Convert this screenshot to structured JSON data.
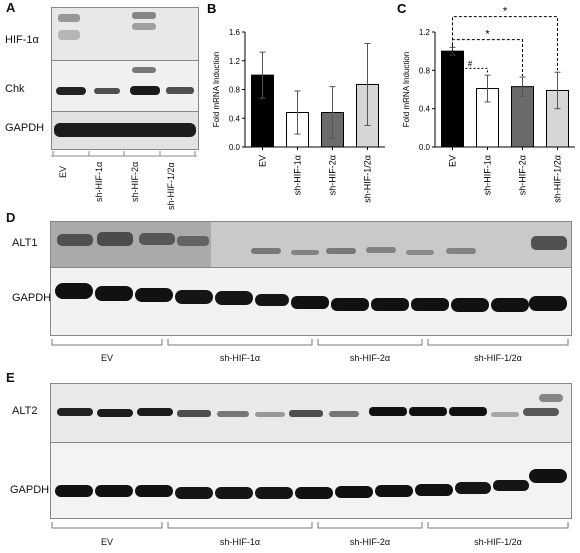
{
  "panels": {
    "a": {
      "letter": "A",
      "rows": [
        "HIF-1α",
        "Chk",
        "GAPDH"
      ],
      "lanes": [
        "EV",
        "sh-HIF-1α",
        "sh-HIF-2α",
        "sh-HIF-1/2α"
      ]
    },
    "d": {
      "letter": "D",
      "rows": [
        "ALT1",
        "GAPDH"
      ],
      "groups": [
        "EV",
        "sh-HIF-1α",
        "sh-HIF-2α",
        "sh-HIF-1/2α"
      ]
    },
    "e": {
      "letter": "E",
      "rows": [
        "ALT2",
        "GAPDH"
      ],
      "groups": [
        "EV",
        "sh-HIF-1α",
        "sh-HIF-2α",
        "sh-HIF-1/2α"
      ]
    }
  },
  "chart_data": [
    {
      "panel": "B",
      "type": "bar",
      "categories": [
        "EV",
        "sh-HIF-1α",
        "sh-HIF-2α",
        "sh-HIF-1/2α"
      ],
      "values": [
        1.0,
        0.48,
        0.48,
        0.87
      ],
      "errors": [
        0.32,
        0.3,
        0.36,
        0.57
      ],
      "ylabel": "Fold mRNA Induction",
      "ylim": [
        0,
        1.6
      ],
      "yticks": [
        "0.0",
        "0.4",
        "0.8",
        "1.2",
        "1.6"
      ],
      "colors": [
        "#000000",
        "#ffffff",
        "#6b6b6b",
        "#d6d6d6"
      ],
      "annotations": []
    },
    {
      "panel": "C",
      "type": "bar",
      "categories": [
        "EV",
        "sh-HIF-1α",
        "sh-HIF-2α",
        "sh-HIF-1/2α"
      ],
      "values": [
        1.0,
        0.61,
        0.63,
        0.59
      ],
      "errors": [
        0.04,
        0.14,
        0.1,
        0.19
      ],
      "ylabel": "Fold mRNA Induction",
      "ylim": [
        0,
        1.2
      ],
      "yticks": [
        "0.0",
        "0.4",
        "0.8",
        "1.2"
      ],
      "colors": [
        "#000000",
        "#ffffff",
        "#6b6b6b",
        "#d6d6d6"
      ],
      "annotations": [
        "#",
        "*",
        "*"
      ]
    }
  ]
}
